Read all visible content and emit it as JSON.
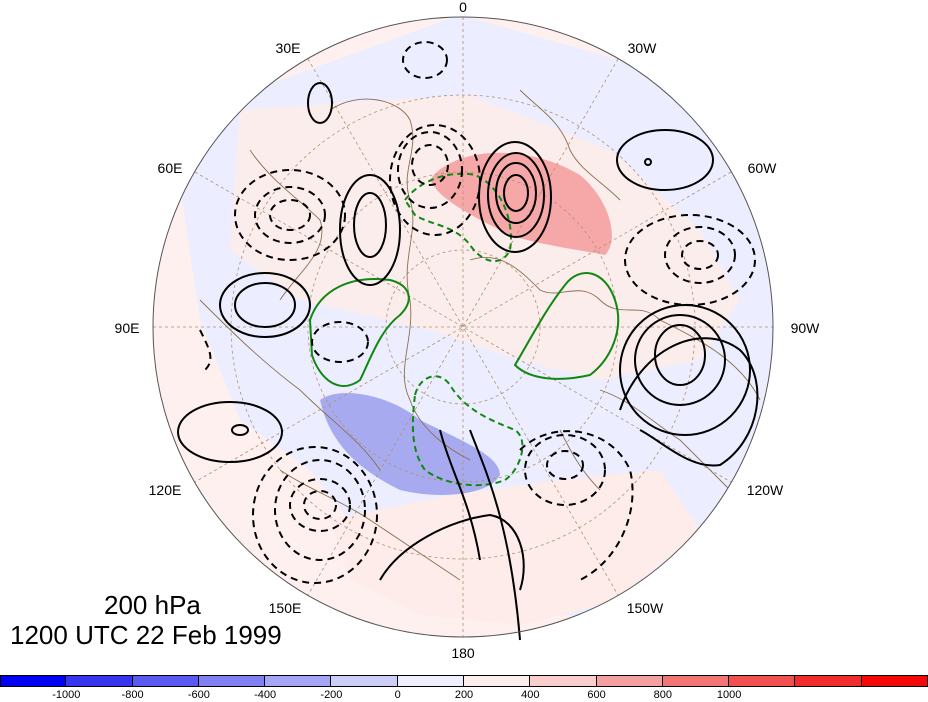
{
  "map": {
    "projection": "polar-stereographic-north",
    "longitude_labels": [
      "0",
      "30W",
      "60W",
      "90W",
      "120W",
      "150W",
      "180",
      "150E",
      "120E",
      "90E",
      "60E",
      "30E"
    ],
    "fill_colors": {
      "positive": "#f8a0a0",
      "weak_positive": "#fdecea",
      "negative": "#a8aaf0",
      "weak_negative": "#eceeff"
    },
    "contour_colors": {
      "field_a": "#000000",
      "field_b": "#118811"
    },
    "coastline_color": "#8b6f52",
    "graticule_color": "#b09070"
  },
  "titles": {
    "level": "200 hPa",
    "time": "1200 UTC 22 Feb 1999"
  },
  "colorbar": {
    "colors": [
      "#0000f5",
      "#3636f0",
      "#5a5af0",
      "#8080f2",
      "#a6a6f6",
      "#cdcdfa",
      "#eeeefe",
      "#fdeeee",
      "#fbcdcd",
      "#f5a0a0",
      "#f37575",
      "#f25050",
      "#f22c2c",
      "#f50808"
    ],
    "tick_labels": [
      "-1000",
      "-800",
      "-600",
      "-400",
      "-200",
      "0",
      "200",
      "400",
      "600",
      "800",
      "1000"
    ]
  }
}
